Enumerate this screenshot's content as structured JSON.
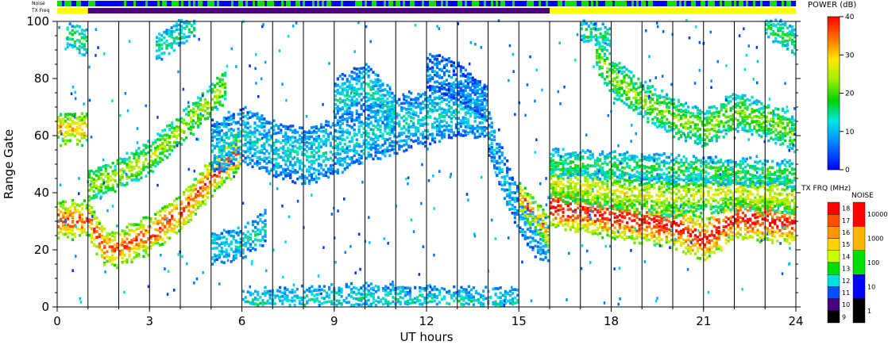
{
  "chart_data": {
    "type": "heatmap",
    "xlabel": "UT hours",
    "ylabel": "Range Gate",
    "x_ticks": [
      0,
      3,
      6,
      9,
      12,
      15,
      18,
      21,
      24
    ],
    "y_ticks": [
      0,
      20,
      40,
      60,
      80,
      100
    ],
    "xlim": [
      0,
      24
    ],
    "ylim": [
      0,
      100
    ],
    "hour_markers": [
      1,
      2,
      3,
      4,
      5,
      6,
      7,
      8,
      9,
      10,
      11,
      12,
      13,
      14,
      15,
      16,
      17,
      18,
      19,
      20,
      21,
      22,
      23
    ],
    "top_strips": {
      "noise_label": "Noise",
      "txfreq_label": "TX Freq",
      "txfreq_segments": [
        {
          "start": 0,
          "end": 1,
          "color": "#ffff00"
        },
        {
          "start": 1,
          "end": 16,
          "color": "#4b0082"
        },
        {
          "start": 16,
          "end": 24,
          "color": "#ffff00"
        }
      ]
    },
    "power_colorbar": {
      "title": "POWER (dB)",
      "ticks": [
        "40",
        "30",
        "20",
        "10",
        "0"
      ],
      "range": [
        0,
        40
      ]
    },
    "txfreq_colorbar": {
      "title": "TX FRQ (MHz)",
      "labels": [
        "18",
        "17",
        "16",
        "15",
        "14",
        "13",
        "12",
        "11",
        "10",
        "9"
      ],
      "colors": [
        "#ff0000",
        "#ff5000",
        "#ff9600",
        "#ffd200",
        "#c8ff00",
        "#00e000",
        "#00e0e0",
        "#0050ff",
        "#4b0082",
        "#000000"
      ]
    },
    "noise_colorbar": {
      "title": "NOISE",
      "labels": [
        "10000",
        "1000",
        "100",
        "10",
        "1"
      ],
      "colors": [
        "#ff0000",
        "#ffb400",
        "#00e000",
        "#0000ff",
        "#000000"
      ]
    },
    "echo_bands": [
      {
        "name": "",
        "points": [
          [
            0,
            30
          ],
          [
            1,
            30
          ],
          [
            1.5,
            20
          ],
          [
            2,
            20
          ],
          [
            3,
            25
          ],
          [
            4,
            33
          ],
          [
            5,
            45
          ],
          [
            6,
            55
          ]
        ],
        "width": 6,
        "power": 33
      },
      {
        "name": "",
        "points": [
          [
            0,
            62
          ],
          [
            1,
            62
          ]
        ],
        "width": 5,
        "power": 28
      },
      {
        "name": "",
        "points": [
          [
            1,
            42
          ],
          [
            2,
            46
          ],
          [
            3,
            52
          ],
          [
            4,
            62
          ],
          [
            5,
            72
          ],
          [
            5.5,
            78
          ]
        ],
        "width": 5,
        "power": 22
      },
      {
        "name": "",
        "points": [
          [
            0.3,
            95
          ],
          [
            1,
            92
          ]
        ],
        "width": 4,
        "power": 16
      },
      {
        "name": "",
        "points": [
          [
            3.2,
            90
          ],
          [
            4,
            96
          ],
          [
            4.5,
            100
          ]
        ],
        "width": 4,
        "power": 14
      },
      {
        "name": "",
        "points": [
          [
            5,
            20
          ],
          [
            6,
            22
          ],
          [
            6.8,
            28
          ]
        ],
        "width": 5,
        "power": 12
      },
      {
        "name": "",
        "points": [
          [
            5,
            55
          ],
          [
            6,
            60
          ],
          [
            7,
            55
          ],
          [
            8,
            52
          ],
          [
            9,
            55
          ],
          [
            10,
            60
          ],
          [
            11,
            63
          ],
          [
            12,
            66
          ],
          [
            13,
            69
          ],
          [
            14,
            68
          ]
        ],
        "width": 9,
        "power": 11
      },
      {
        "name": "",
        "points": [
          [
            9,
            72
          ],
          [
            10,
            77
          ],
          [
            11,
            66
          ]
        ],
        "width": 7,
        "power": 12
      },
      {
        "name": "",
        "points": [
          [
            12,
            83
          ],
          [
            13,
            78
          ],
          [
            14,
            70
          ]
        ],
        "width": 6,
        "power": 7
      },
      {
        "name": "",
        "points": [
          [
            14,
            60
          ],
          [
            14.5,
            45
          ],
          [
            15,
            32
          ],
          [
            15.5,
            25
          ],
          [
            16,
            22
          ]
        ],
        "width": 7,
        "power": 9
      },
      {
        "name": "",
        "points": [
          [
            15,
            38
          ],
          [
            15.5,
            32
          ],
          [
            16,
            24
          ]
        ],
        "width": 5,
        "power": 30
      },
      {
        "name": "",
        "points": [
          [
            16,
            35
          ],
          [
            18,
            31
          ],
          [
            20,
            28
          ],
          [
            21,
            23
          ],
          [
            22,
            31
          ],
          [
            24,
            29
          ]
        ],
        "width": 7,
        "power": 36
      },
      {
        "name": "",
        "points": [
          [
            16,
            44
          ],
          [
            18,
            40
          ],
          [
            20,
            38
          ],
          [
            22,
            40
          ],
          [
            24,
            38
          ]
        ],
        "width": 6,
        "power": 24
      },
      {
        "name": "",
        "points": [
          [
            16,
            50
          ],
          [
            24,
            46
          ]
        ],
        "width": 4,
        "power": 16
      },
      {
        "name": "",
        "points": [
          [
            17.5,
            88
          ],
          [
            18,
            80
          ],
          [
            19,
            72
          ],
          [
            20,
            66
          ],
          [
            21,
            62
          ],
          [
            22,
            68
          ],
          [
            23,
            65
          ],
          [
            24,
            60
          ]
        ],
        "width": 6,
        "power": 20
      },
      {
        "name": "",
        "points": [
          [
            17,
            96
          ],
          [
            18,
            94
          ]
        ],
        "width": 3,
        "power": 15
      },
      {
        "name": "",
        "points": [
          [
            23,
            98
          ],
          [
            24,
            92
          ]
        ],
        "width": 4,
        "power": 16
      },
      {
        "name": "",
        "points": [
          [
            6,
            1
          ],
          [
            10,
            3
          ],
          [
            15,
            1
          ]
        ],
        "width": 4,
        "power": 12
      }
    ]
  }
}
